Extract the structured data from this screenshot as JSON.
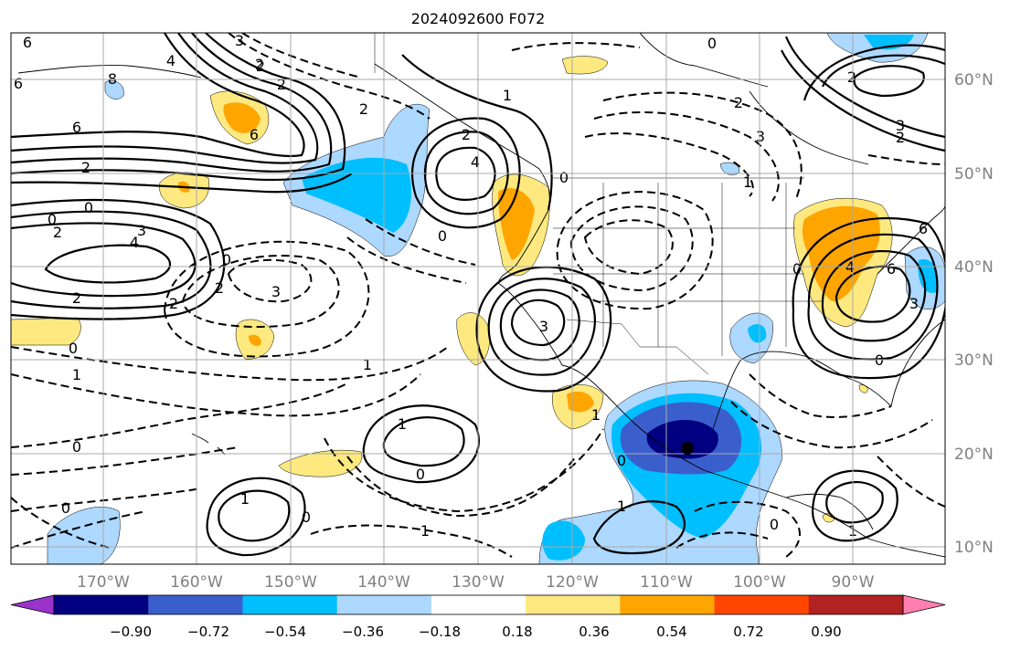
{
  "title": "2024092600 F072",
  "map": {
    "lon_labels": [
      "170°W",
      "160°W",
      "150°W",
      "140°W",
      "130°W",
      "120°W",
      "110°W",
      "100°W",
      "90°W"
    ],
    "lat_labels": [
      "60°N",
      "50°N",
      "40°N",
      "30°N",
      "20°N",
      "10°N"
    ],
    "contour_labels": [
      "6",
      "6",
      "6",
      "8",
      "4",
      "3",
      "2",
      "2",
      "6",
      "0",
      "0",
      "2",
      "3",
      "4",
      "2",
      "2",
      "0",
      "2",
      "3",
      "2",
      "1",
      "0",
      "0",
      "1",
      "1",
      "2",
      "4",
      "0",
      "1",
      "3",
      "2",
      "0",
      "0",
      "2",
      "3",
      "6",
      "4",
      "6",
      "2",
      "3",
      "2",
      "0",
      "1",
      "0",
      "0",
      "1",
      "1",
      "1",
      "0",
      "1",
      "0",
      "1",
      "0",
      "0",
      "2",
      "3"
    ],
    "shading": {
      "positive_colors": [
        "#fde97f",
        "#ffa500",
        "#ff4500",
        "#b22222",
        "#ff80b0"
      ],
      "negative_colors": [
        "#add8ff",
        "#00bfff",
        "#3a5fcd",
        "#000080",
        "#9933cc"
      ]
    }
  },
  "colorbar": {
    "colors": [
      "#9933cc",
      "#000080",
      "#3a5fcd",
      "#00bfff",
      "#add8ff",
      "#ffffff",
      "#fde97f",
      "#ffa500",
      "#ff4500",
      "#b22222",
      "#ff80b0"
    ],
    "tick_labels": [
      "−0.90",
      "−0.72",
      "−0.54",
      "−0.36",
      "−0.18",
      "0.18",
      "0.36",
      "0.54",
      "0.72",
      "0.90"
    ]
  }
}
